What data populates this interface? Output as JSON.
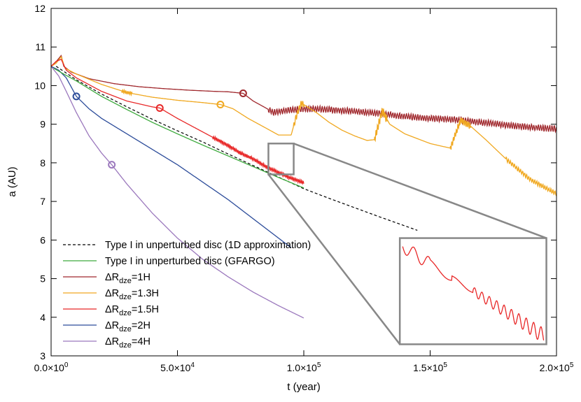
{
  "chart_data": {
    "type": "line",
    "xlabel": "t (year)",
    "ylabel": "a (AU)",
    "xlim": [
      0,
      200000
    ],
    "ylim": [
      3,
      12
    ],
    "x_ticks": [
      {
        "value": 0,
        "mant": "0.0",
        "exp": "0"
      },
      {
        "value": 50000,
        "mant": "5.0",
        "exp": "4"
      },
      {
        "value": 100000,
        "mant": "1.0",
        "exp": "5"
      },
      {
        "value": 150000,
        "mant": "1.5",
        "exp": "5"
      },
      {
        "value": 200000,
        "mant": "2.0",
        "exp": "5"
      }
    ],
    "y_ticks": [
      3,
      4,
      5,
      6,
      7,
      8,
      9,
      10,
      11,
      12
    ],
    "times_sign": "×",
    "tick_base": "10",
    "grid": false,
    "legend_position": "bottom-left",
    "series": [
      {
        "id": "1d",
        "name": "Type I in unperturbed disc (1D approximation)",
        "color": "#000000",
        "dash": true,
        "points": [
          [
            2000,
            10.5
          ],
          [
            10000,
            10.15
          ],
          [
            20000,
            9.78
          ],
          [
            30000,
            9.45
          ],
          [
            40000,
            9.13
          ],
          [
            50000,
            8.83
          ],
          [
            60000,
            8.54
          ],
          [
            70000,
            8.23
          ],
          [
            80000,
            7.93
          ],
          [
            90000,
            7.63
          ],
          [
            100000,
            7.33
          ],
          [
            110000,
            7.08
          ],
          [
            120000,
            6.84
          ],
          [
            130000,
            6.6
          ],
          [
            145000,
            6.25
          ]
        ]
      },
      {
        "id": "gfargo",
        "name": "Type I in unperturbed disc (GFARGO)",
        "color": "#3daa3d",
        "points": [
          [
            1000,
            10.45
          ],
          [
            5000,
            10.3
          ],
          [
            10000,
            10.12
          ],
          [
            20000,
            9.72
          ],
          [
            30000,
            9.38
          ],
          [
            40000,
            9.05
          ],
          [
            50000,
            8.75
          ],
          [
            60000,
            8.46
          ],
          [
            70000,
            8.18
          ],
          [
            80000,
            7.9
          ],
          [
            90000,
            7.62
          ],
          [
            100000,
            7.35
          ]
        ]
      },
      {
        "id": "r1",
        "name_main": "ΔR",
        "name_sub": "dze",
        "name_suffix": "=1H",
        "color": "#a0282d",
        "points": [
          [
            0,
            10.5
          ],
          [
            2000,
            10.62
          ],
          [
            4000,
            10.78
          ],
          [
            5000,
            10.5
          ],
          [
            8000,
            10.35
          ],
          [
            15000,
            10.18
          ],
          [
            25000,
            10.05
          ],
          [
            35000,
            9.97
          ],
          [
            45000,
            9.92
          ],
          [
            55000,
            9.88
          ],
          [
            65000,
            9.85
          ],
          [
            70000,
            9.84
          ],
          [
            76000,
            9.8
          ],
          [
            80000,
            9.6
          ],
          [
            85000,
            9.42
          ],
          [
            88000,
            9.3
          ],
          [
            92000,
            9.35
          ],
          [
            100000,
            9.4
          ],
          [
            110000,
            9.38
          ],
          [
            120000,
            9.33
          ],
          [
            130000,
            9.28
          ],
          [
            140000,
            9.2
          ],
          [
            150000,
            9.15
          ],
          [
            160000,
            9.12
          ],
          [
            170000,
            9.05
          ],
          [
            180000,
            8.98
          ],
          [
            190000,
            8.92
          ],
          [
            200000,
            8.88
          ]
        ],
        "marker_at": [
          76000,
          9.8
        ]
      },
      {
        "id": "r13",
        "name_main": "ΔR",
        "name_sub": "dze",
        "name_suffix": "=1.3H",
        "color": "#f0a820",
        "points": [
          [
            0,
            10.5
          ],
          [
            2000,
            10.58
          ],
          [
            4000,
            10.75
          ],
          [
            5500,
            10.45
          ],
          [
            10000,
            10.3
          ],
          [
            20000,
            10.03
          ],
          [
            30000,
            9.82
          ],
          [
            40000,
            9.7
          ],
          [
            50000,
            9.62
          ],
          [
            60000,
            9.56
          ],
          [
            67000,
            9.51
          ],
          [
            72000,
            9.4
          ],
          [
            78000,
            9.15
          ],
          [
            85000,
            8.9
          ],
          [
            90000,
            8.72
          ],
          [
            95000,
            8.72
          ],
          [
            97000,
            9.2
          ],
          [
            99000,
            9.55
          ],
          [
            105000,
            9.3
          ],
          [
            110000,
            9.05
          ],
          [
            115000,
            8.85
          ],
          [
            120000,
            8.7
          ],
          [
            125000,
            8.58
          ],
          [
            128000,
            8.6
          ],
          [
            131000,
            9.35
          ],
          [
            134000,
            9.0
          ],
          [
            140000,
            8.75
          ],
          [
            150000,
            8.5
          ],
          [
            158000,
            8.38
          ],
          [
            162000,
            9.1
          ],
          [
            166000,
            8.95
          ],
          [
            172000,
            8.6
          ],
          [
            180000,
            8.1
          ],
          [
            190000,
            7.55
          ],
          [
            200000,
            7.2
          ]
        ],
        "marker_at": [
          67000,
          9.51
        ]
      },
      {
        "id": "r15",
        "name_main": "ΔR",
        "name_sub": "dze",
        "name_suffix": "=1.5H",
        "color": "#e82828",
        "points": [
          [
            0,
            10.5
          ],
          [
            2000,
            10.63
          ],
          [
            4000,
            10.68
          ],
          [
            6000,
            10.4
          ],
          [
            10000,
            10.2
          ],
          [
            20000,
            9.85
          ],
          [
            30000,
            9.6
          ],
          [
            40000,
            9.45
          ],
          [
            43000,
            9.42
          ],
          [
            50000,
            9.15
          ],
          [
            60000,
            8.8
          ],
          [
            70000,
            8.45
          ],
          [
            75000,
            8.25
          ],
          [
            80000,
            8.1
          ],
          [
            85000,
            7.9
          ],
          [
            90000,
            7.75
          ],
          [
            95000,
            7.6
          ],
          [
            100000,
            7.48
          ]
        ],
        "marker_at": [
          43000,
          9.42
        ]
      },
      {
        "id": "r2",
        "name_main": "ΔR",
        "name_sub": "dze",
        "name_suffix": "=2H",
        "color": "#2c4c9a",
        "points": [
          [
            0,
            10.5
          ],
          [
            3000,
            10.4
          ],
          [
            6000,
            10.2
          ],
          [
            10000,
            9.72
          ],
          [
            15000,
            9.4
          ],
          [
            20000,
            9.15
          ],
          [
            30000,
            8.75
          ],
          [
            40000,
            8.35
          ],
          [
            50000,
            7.95
          ],
          [
            60000,
            7.5
          ],
          [
            70000,
            7.05
          ],
          [
            80000,
            6.55
          ],
          [
            90000,
            6.05
          ],
          [
            95000,
            5.8
          ]
        ],
        "marker_at": [
          10000,
          9.72
        ]
      },
      {
        "id": "r4",
        "name_main": "ΔR",
        "name_sub": "dze",
        "name_suffix": "=4H",
        "color": "#9b78bd",
        "points": [
          [
            0,
            10.5
          ],
          [
            3000,
            10.25
          ],
          [
            6000,
            9.85
          ],
          [
            10000,
            9.3
          ],
          [
            15000,
            8.7
          ],
          [
            20000,
            8.25
          ],
          [
            24000,
            7.95
          ],
          [
            30000,
            7.45
          ],
          [
            40000,
            6.7
          ],
          [
            50000,
            6.05
          ],
          [
            60000,
            5.5
          ],
          [
            70000,
            5.05
          ],
          [
            80000,
            4.65
          ],
          [
            90000,
            4.3
          ],
          [
            100000,
            3.98
          ]
        ],
        "marker_at": [
          24000,
          7.95
        ]
      }
    ],
    "inset": {
      "source_x": [
        86000,
        96000
      ],
      "source_y": [
        7.7,
        8.5
      ],
      "target_x": [
        138000,
        196000
      ],
      "target_y": [
        3.3,
        6.05
      ],
      "color": "#888888"
    }
  }
}
